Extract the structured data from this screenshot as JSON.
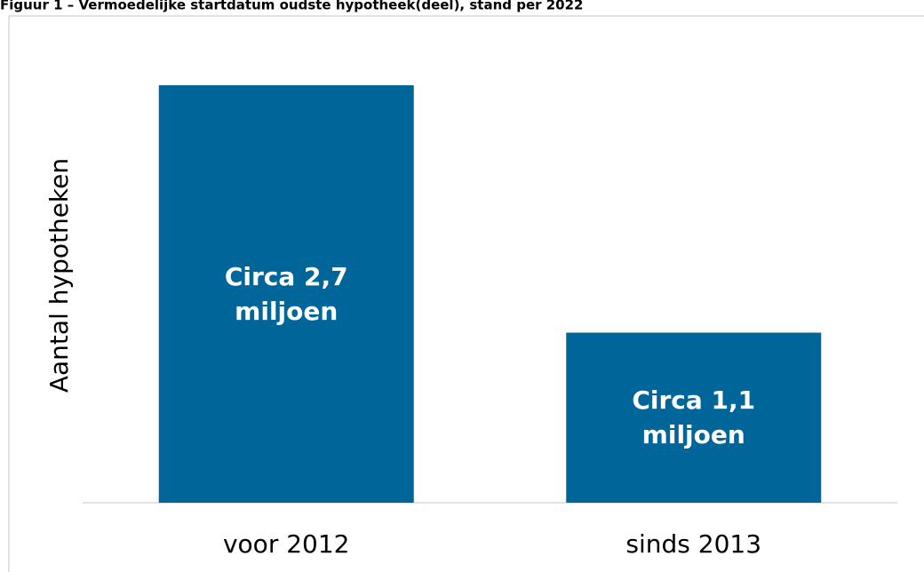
{
  "chart_data": {
    "type": "bar",
    "title": "Figuur 1 – Vermoedelijke startdatum oudste hypotheek(deel), stand per 2022",
    "ylabel": "Aantal hypotheken",
    "categories": [
      "voor 2012",
      "sinds 2013"
    ],
    "values": [
      2.7,
      1.1
    ],
    "value_labels": [
      "Circa 2,7 miljoen",
      "Circa 1,1 miljoen"
    ],
    "color": "#006699"
  }
}
